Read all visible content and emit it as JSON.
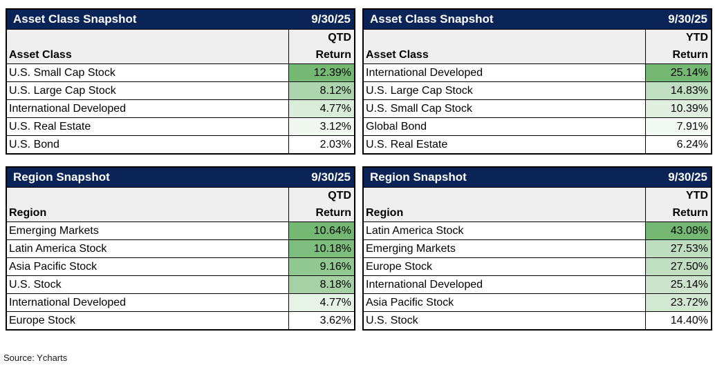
{
  "page": {
    "background": "#ffffff",
    "source_note": "Source: Ycharts"
  },
  "colors": {
    "title_bar_bg": "#0a2458",
    "title_bar_text": "#ffffff",
    "subheader_bg": "#efefef",
    "border": "#000000",
    "text": "#000000",
    "scale_high_green": "#74B874",
    "scale_low_white": "#ffffff"
  },
  "tables": [
    {
      "title": "Asset Class Snapshot",
      "date": "9/30/25",
      "label_header": "Asset Class",
      "period_header": "QTD",
      "value_header": "Return",
      "rows": [
        {
          "label": "U.S. Small Cap Stock",
          "value": "12.39%",
          "value_num": 12.39
        },
        {
          "label": "U.S. Large Cap Stock",
          "value": "8.12%",
          "value_num": 8.12
        },
        {
          "label": "International Developed",
          "value": "4.77%",
          "value_num": 4.77
        },
        {
          "label": "U.S. Real Estate",
          "value": "3.12%",
          "value_num": 3.12
        },
        {
          "label": "U.S. Bond",
          "value": "2.03%",
          "value_num": 2.03
        }
      ]
    },
    {
      "title": "Asset Class Snapshot",
      "date": "9/30/25",
      "label_header": "Asset Class",
      "period_header": "YTD",
      "value_header": "Return",
      "rows": [
        {
          "label": "International Developed",
          "value": "25.14%",
          "value_num": 25.14
        },
        {
          "label": "U.S. Large Cap Stock",
          "value": "14.83%",
          "value_num": 14.83
        },
        {
          "label": "U.S. Small Cap Stock",
          "value": "10.39%",
          "value_num": 10.39
        },
        {
          "label": "Global Bond",
          "value": "7.91%",
          "value_num": 7.91
        },
        {
          "label": "U.S. Real Estate",
          "value": "6.24%",
          "value_num": 6.24
        }
      ]
    },
    {
      "title": "Region Snapshot",
      "date": "9/30/25",
      "label_header": "Region",
      "period_header": "QTD",
      "value_header": "Return",
      "rows": [
        {
          "label": "Emerging Markets",
          "value": "10.64%",
          "value_num": 10.64
        },
        {
          "label": "Latin America Stock",
          "value": "10.18%",
          "value_num": 10.18
        },
        {
          "label": "Asia Pacific Stock",
          "value": "9.16%",
          "value_num": 9.16
        },
        {
          "label": "U.S. Stock",
          "value": "8.18%",
          "value_num": 8.18
        },
        {
          "label": "International Developed",
          "value": "4.77%",
          "value_num": 4.77
        },
        {
          "label": "Europe Stock",
          "value": "3.62%",
          "value_num": 3.62
        }
      ]
    },
    {
      "title": "Region Snapshot",
      "date": "9/30/25",
      "label_header": "Region",
      "period_header": "YTD",
      "value_header": "Return",
      "rows": [
        {
          "label": "Latin America Stock",
          "value": "43.08%",
          "value_num": 43.08
        },
        {
          "label": "Emerging Markets",
          "value": "27.53%",
          "value_num": 27.53
        },
        {
          "label": "Europe Stock",
          "value": "27.50%",
          "value_num": 27.5
        },
        {
          "label": "International Developed",
          "value": "25.14%",
          "value_num": 25.14
        },
        {
          "label": "Asia Pacific Stock",
          "value": "23.72%",
          "value_num": 23.72
        },
        {
          "label": "U.S. Stock",
          "value": "14.40%",
          "value_num": 14.4
        }
      ]
    }
  ],
  "chart_data": [
    {
      "type": "table",
      "title": "Asset Class Snapshot",
      "date": "9/30/25",
      "columns": [
        "Asset Class",
        "QTD Return"
      ],
      "categories": [
        "U.S. Small Cap Stock",
        "U.S. Large Cap Stock",
        "International Developed",
        "U.S. Real Estate",
        "U.S. Bond"
      ],
      "values": [
        12.39,
        8.12,
        4.77,
        3.12,
        2.03
      ],
      "value_format": "percent",
      "conditional_format": "white-to-green scale, highest value darkest green"
    },
    {
      "type": "table",
      "title": "Asset Class Snapshot",
      "date": "9/30/25",
      "columns": [
        "Asset Class",
        "YTD Return"
      ],
      "categories": [
        "International Developed",
        "U.S. Large Cap Stock",
        "U.S. Small Cap Stock",
        "Global Bond",
        "U.S. Real Estate"
      ],
      "values": [
        25.14,
        14.83,
        10.39,
        7.91,
        6.24
      ],
      "value_format": "percent",
      "conditional_format": "white-to-green scale, highest value darkest green"
    },
    {
      "type": "table",
      "title": "Region Snapshot",
      "date": "9/30/25",
      "columns": [
        "Region",
        "QTD Return"
      ],
      "categories": [
        "Emerging Markets",
        "Latin America Stock",
        "Asia Pacific Stock",
        "U.S. Stock",
        "International Developed",
        "Europe Stock"
      ],
      "values": [
        10.64,
        10.18,
        9.16,
        8.18,
        4.77,
        3.62
      ],
      "value_format": "percent",
      "conditional_format": "white-to-green scale, highest value darkest green"
    },
    {
      "type": "table",
      "title": "Region Snapshot",
      "date": "9/30/25",
      "columns": [
        "Region",
        "YTD Return"
      ],
      "categories": [
        "Latin America Stock",
        "Emerging Markets",
        "Europe Stock",
        "International Developed",
        "Asia Pacific Stock",
        "U.S. Stock"
      ],
      "values": [
        43.08,
        27.53,
        27.5,
        25.14,
        23.72,
        14.4
      ],
      "value_format": "percent",
      "conditional_format": "white-to-green scale, highest value darkest green"
    }
  ]
}
